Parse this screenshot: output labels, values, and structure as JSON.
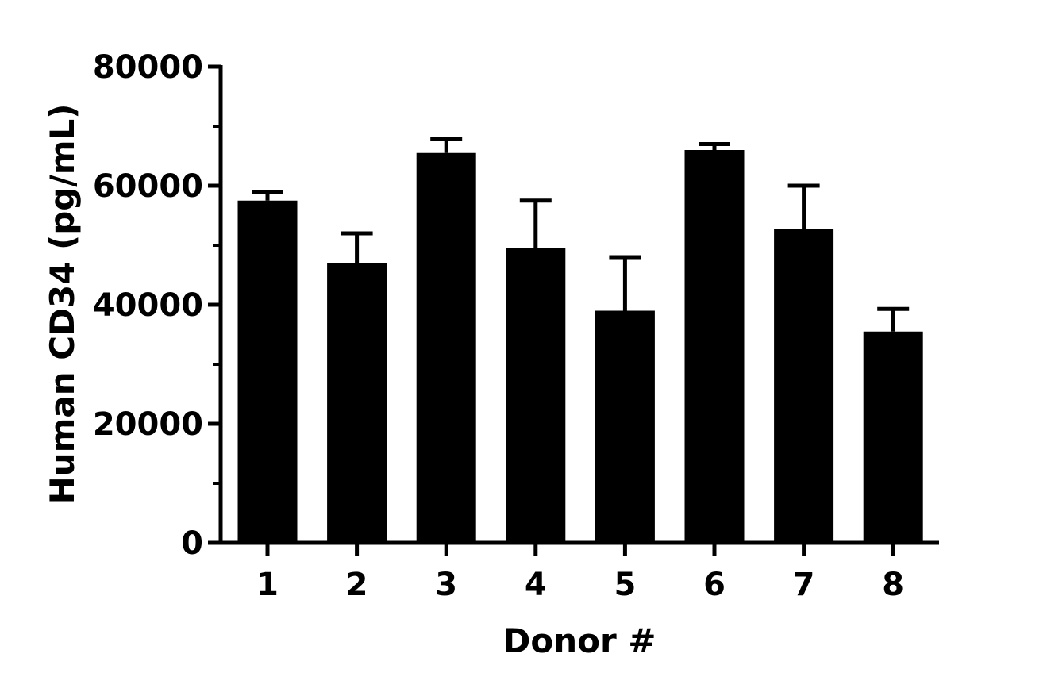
{
  "chart_data": {
    "type": "bar",
    "categories": [
      "1",
      "2",
      "3",
      "4",
      "5",
      "6",
      "7",
      "8"
    ],
    "values": [
      57500,
      47000,
      65500,
      49500,
      39000,
      66000,
      52700,
      35500
    ],
    "error_upper": [
      59000,
      52000,
      67800,
      57500,
      48000,
      67000,
      60000,
      39300
    ],
    "xlabel": "Donor #",
    "ylabel": "Human CD34 (pg/mL)",
    "ylim": [
      0,
      80000
    ],
    "yticks": [
      0,
      20000,
      40000,
      60000,
      80000
    ],
    "ytick_labels": [
      "0",
      "20000",
      "40000",
      "60000",
      "80000"
    ],
    "y_minor_ticks": [
      10000,
      30000,
      50000,
      70000
    ],
    "grid": false,
    "bar_color": "#000000"
  }
}
